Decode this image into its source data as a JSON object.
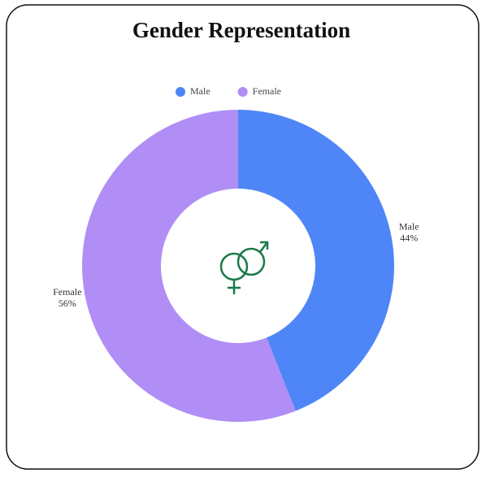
{
  "chart_data": {
    "type": "donut",
    "title": "Gender Representation",
    "categories": [
      "Male",
      "Female"
    ],
    "values": [
      44,
      56
    ],
    "value_labels": [
      "44%",
      "56%"
    ],
    "colors": [
      "#4f86f7",
      "#b08ef5"
    ],
    "legend": "top"
  }
}
